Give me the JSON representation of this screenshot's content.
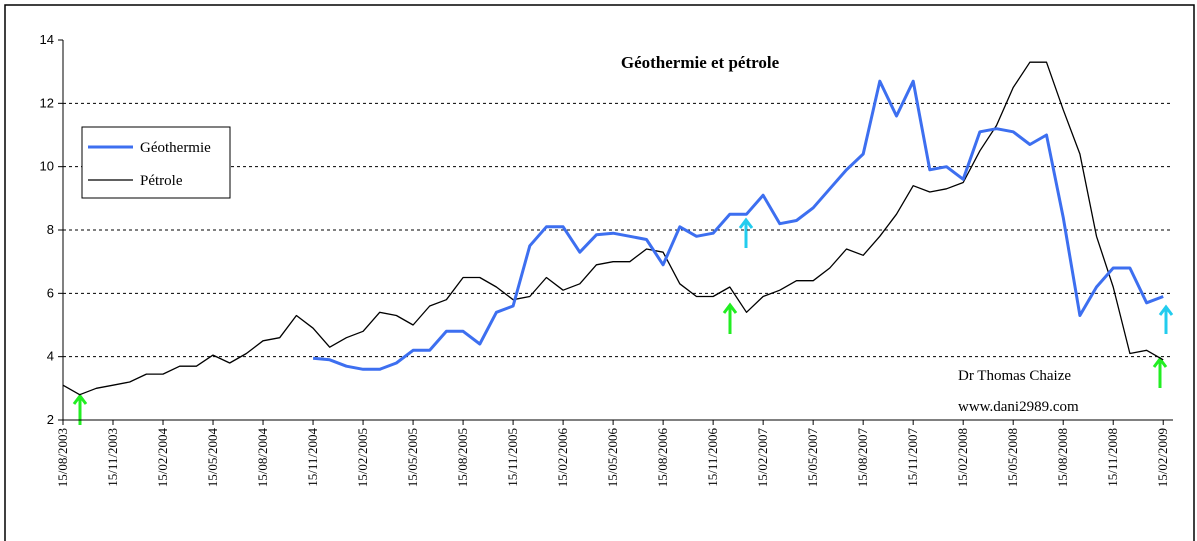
{
  "chart_data": {
    "type": "line",
    "title": "Géothermie et pétrole",
    "annotations": [
      "Dr Thomas Chaize",
      "www.dani2989.com"
    ],
    "categories": [
      "15/08/2003",
      null,
      null,
      "15/11/2003",
      null,
      null,
      "15/02/2004",
      null,
      null,
      "15/05/2004",
      null,
      null,
      "15/08/2004",
      null,
      null,
      "15/11/2004",
      null,
      null,
      "15/02/2005",
      null,
      null,
      "15/05/2005",
      null,
      null,
      "15/08/2005",
      null,
      null,
      "15/11/2005",
      null,
      null,
      "15/02/2006",
      null,
      null,
      "15/05/2006",
      null,
      null,
      "15/08/2006",
      null,
      null,
      "15/11/2006",
      null,
      null,
      "15/02/2007",
      null,
      null,
      "15/05/2007",
      null,
      null,
      "15/08/2007",
      null,
      null,
      "15/11/2007",
      null,
      null,
      "15/02/2008",
      null,
      null,
      "15/05/2008",
      null,
      null,
      "15/08/2008",
      null,
      null,
      "15/11/2008",
      null,
      null,
      "15/02/2009"
    ],
    "series": [
      {
        "name": "Géothermie",
        "color": "#3d6ff0",
        "values": [
          null,
          null,
          null,
          null,
          null,
          null,
          null,
          null,
          null,
          null,
          null,
          null,
          null,
          null,
          null,
          3.95,
          3.9,
          3.7,
          3.6,
          3.6,
          3.8,
          4.2,
          4.2,
          4.8,
          4.8,
          4.4,
          5.4,
          5.6,
          7.5,
          8.1,
          8.1,
          7.3,
          7.85,
          7.9,
          7.8,
          7.7,
          6.9,
          8.1,
          7.8,
          7.9,
          8.5,
          8.5,
          9.1,
          8.2,
          8.3,
          8.7,
          9.3,
          9.9,
          10.4,
          12.7,
          11.6,
          12.7,
          9.9,
          10.0,
          9.6,
          11.1,
          11.2,
          11.1,
          10.7,
          11.0,
          8.4,
          5.3,
          6.2,
          6.8,
          6.8,
          5.7,
          5.9
        ]
      },
      {
        "name": "Pétrole",
        "color": "#000000",
        "values": [
          3.1,
          2.8,
          3.0,
          3.1,
          3.2,
          3.45,
          3.45,
          3.7,
          3.7,
          4.05,
          3.8,
          4.1,
          4.5,
          4.6,
          5.3,
          4.9,
          4.3,
          4.6,
          4.8,
          5.4,
          5.3,
          5.0,
          5.6,
          5.8,
          6.5,
          6.5,
          6.2,
          5.8,
          5.9,
          6.5,
          6.1,
          6.3,
          6.9,
          7.0,
          7.0,
          7.4,
          7.3,
          6.3,
          5.9,
          5.9,
          6.2,
          5.4,
          5.9,
          6.1,
          6.4,
          6.4,
          6.8,
          7.4,
          7.2,
          7.8,
          8.5,
          9.4,
          9.2,
          9.3,
          9.5,
          10.5,
          11.3,
          12.5,
          13.3,
          13.3,
          11.8,
          10.4,
          7.8,
          6.2,
          4.1,
          4.2,
          3.9
        ]
      }
    ],
    "ylim": [
      2,
      14
    ],
    "yticks": [
      2,
      4,
      6,
      8,
      10,
      12,
      14
    ],
    "grid": true,
    "legend": "upper left"
  }
}
